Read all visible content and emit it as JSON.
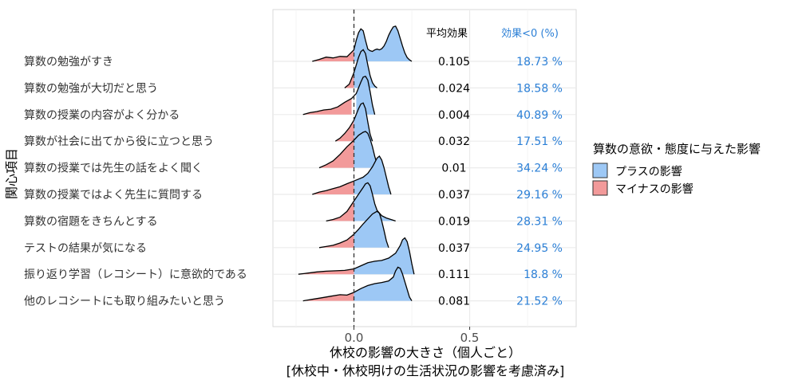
{
  "chart_data": {
    "type": "ridgeline",
    "title": "",
    "xlabel_line1": "休校の影響の大きさ（個人ごと）",
    "xlabel_line2": "[休校中・休校明けの生活状況の影響を考慮済み]",
    "ylabel": "関心項目",
    "xlim": [
      -0.35,
      0.96
    ],
    "x_ticks": [
      {
        "value": 0.0,
        "label": "0.0"
      },
      {
        "value": 0.5,
        "label": "0.5"
      }
    ],
    "grid": true,
    "reference_line": 0,
    "column_headers": {
      "mean": "平均効果",
      "neg": "効果<0 (%)"
    },
    "colors": {
      "positive": "#9dc8f5",
      "negative": "#f29a9a",
      "neg_text": "#2b7fd6",
      "panel_bg": "#ffffff",
      "grid": "#ebebeb"
    },
    "legend": {
      "title": "算数の意欲・態度に与えた影響",
      "position": "right",
      "items": [
        {
          "label": "プラスの影響",
          "color": "#9dc8f5"
        },
        {
          "label": "マイナスの影響",
          "color": "#f29a9a"
        }
      ]
    },
    "categories": [
      "算数の勉強がすき",
      "算数の勉強が大切だと思う",
      "算数の授業の内容がよく分かる",
      "算数が社会に出てから役に立つと思う",
      "算数の授業では先生の話をよく聞く",
      "算数の授業ではよく先生に質問する",
      "算数の宿題をきちんとする",
      "テストの結果が気になる",
      "振り返り学習（レコシート）に意欲的である",
      "他のレコシートにも取り組みたいと思う"
    ],
    "mean_effect": [
      "0.105",
      "0.024",
      "0.004",
      "0.032",
      "0.01",
      "0.037",
      "0.019",
      "0.037",
      "0.111",
      "0.081"
    ],
    "pct_negative": [
      "18.73 %",
      "18.58 %",
      "40.89 %",
      "17.51 %",
      "34.24 %",
      "29.16 %",
      "28.31 %",
      "24.95 %",
      "18.8 %",
      "21.52 %"
    ],
    "densities": [
      {
        "x": [
          -0.18,
          -0.15,
          -0.12,
          -0.09,
          -0.06,
          -0.03,
          0,
          0.01,
          0.02,
          0.03,
          0.04,
          0.05,
          0.06,
          0.07,
          0.08,
          0.09,
          0.1,
          0.11,
          0.12,
          0.13,
          0.14,
          0.15,
          0.16,
          0.17,
          0.18,
          0.19,
          0.2,
          0.21,
          0.22,
          0.23,
          0.24,
          0.25
        ],
        "y": [
          0.0,
          0.05,
          0.11,
          0.09,
          0.13,
          0.12,
          0.3,
          0.55,
          0.75,
          0.85,
          0.8,
          0.55,
          0.32,
          0.28,
          0.26,
          0.3,
          0.32,
          0.3,
          0.33,
          0.4,
          0.52,
          0.68,
          0.8,
          0.9,
          0.92,
          0.8,
          0.6,
          0.4,
          0.22,
          0.1,
          0.04,
          0.0
        ]
      },
      {
        "x": [
          -0.04,
          -0.02,
          0,
          0.01,
          0.02,
          0.03,
          0.04,
          0.05,
          0.06,
          0.07,
          0.08,
          0.09,
          0.1
        ],
        "y": [
          0.0,
          0.1,
          0.4,
          0.6,
          0.8,
          0.95,
          1.0,
          0.9,
          0.6,
          0.32,
          0.14,
          0.05,
          0.0
        ]
      },
      {
        "x": [
          -0.22,
          -0.19,
          -0.16,
          -0.13,
          -0.1,
          -0.07,
          -0.04,
          -0.01,
          0.01,
          0.02,
          0.03,
          0.04,
          0.05,
          0.06,
          0.07,
          0.08,
          0.09
        ],
        "y": [
          0.0,
          0.05,
          0.08,
          0.12,
          0.14,
          0.2,
          0.32,
          0.42,
          0.55,
          0.7,
          0.85,
          0.98,
          1.0,
          0.9,
          0.6,
          0.25,
          0.0
        ]
      },
      {
        "x": [
          -0.08,
          -0.06,
          -0.04,
          -0.02,
          0,
          0.01,
          0.02,
          0.03,
          0.04,
          0.05,
          0.06,
          0.07,
          0.08
        ],
        "y": [
          0.0,
          0.08,
          0.2,
          0.35,
          0.55,
          0.7,
          0.85,
          0.97,
          1.0,
          0.85,
          0.5,
          0.18,
          0.0
        ]
      },
      {
        "x": [
          -0.15,
          -0.12,
          -0.09,
          -0.06,
          -0.03,
          0,
          0.02,
          0.04,
          0.05,
          0.06,
          0.07,
          0.08,
          0.09,
          0.1,
          0.11
        ],
        "y": [
          0.0,
          0.08,
          0.18,
          0.35,
          0.55,
          0.72,
          0.85,
          0.93,
          0.95,
          0.9,
          0.75,
          0.55,
          0.3,
          0.1,
          0.0
        ]
      },
      {
        "x": [
          -0.18,
          -0.15,
          -0.12,
          -0.09,
          -0.06,
          -0.03,
          0,
          0.02,
          0.04,
          0.06,
          0.08,
          0.1,
          0.11,
          0.12,
          0.13,
          0.14,
          0.15,
          0.16
        ],
        "y": [
          0.0,
          0.06,
          0.1,
          0.15,
          0.2,
          0.28,
          0.35,
          0.4,
          0.45,
          0.55,
          0.72,
          0.95,
          1.0,
          0.9,
          0.7,
          0.45,
          0.2,
          0.0
        ]
      },
      {
        "x": [
          -0.12,
          -0.09,
          -0.06,
          -0.03,
          0,
          0.02,
          0.04,
          0.05,
          0.06,
          0.07,
          0.08,
          0.09,
          0.1,
          0.12,
          0.14,
          0.16,
          0.18
        ],
        "y": [
          0.0,
          0.04,
          0.1,
          0.25,
          0.52,
          0.7,
          0.88,
          0.97,
          1.0,
          0.92,
          0.7,
          0.45,
          0.28,
          0.14,
          0.08,
          0.04,
          0.0
        ]
      },
      {
        "x": [
          -0.15,
          -0.12,
          -0.09,
          -0.06,
          -0.03,
          0,
          0.02,
          0.04,
          0.06,
          0.08,
          0.1,
          0.11,
          0.12,
          0.13,
          0.14,
          0.15
        ],
        "y": [
          0.0,
          0.03,
          0.06,
          0.12,
          0.2,
          0.35,
          0.48,
          0.62,
          0.75,
          0.88,
          0.95,
          0.9,
          0.7,
          0.45,
          0.18,
          0.0
        ]
      },
      {
        "x": [
          -0.24,
          -0.2,
          -0.16,
          -0.12,
          -0.08,
          -0.04,
          0,
          0.03,
          0.06,
          0.09,
          0.12,
          0.15,
          0.18,
          0.2,
          0.21,
          0.22,
          0.23,
          0.24,
          0.25,
          0.26
        ],
        "y": [
          0.0,
          0.03,
          0.06,
          0.08,
          0.09,
          0.1,
          0.14,
          0.22,
          0.3,
          0.34,
          0.36,
          0.42,
          0.55,
          0.75,
          0.9,
          0.95,
          0.85,
          0.6,
          0.28,
          0.0
        ]
      },
      {
        "x": [
          -0.22,
          -0.18,
          -0.14,
          -0.1,
          -0.06,
          -0.03,
          0,
          0.03,
          0.06,
          0.09,
          0.12,
          0.15,
          0.17,
          0.18,
          0.19,
          0.2,
          0.21,
          0.22,
          0.23,
          0.24,
          0.25
        ],
        "y": [
          0.0,
          0.04,
          0.08,
          0.12,
          0.16,
          0.15,
          0.22,
          0.32,
          0.4,
          0.45,
          0.48,
          0.52,
          0.62,
          0.78,
          0.88,
          0.85,
          0.7,
          0.5,
          0.3,
          0.1,
          0.0
        ]
      }
    ]
  }
}
